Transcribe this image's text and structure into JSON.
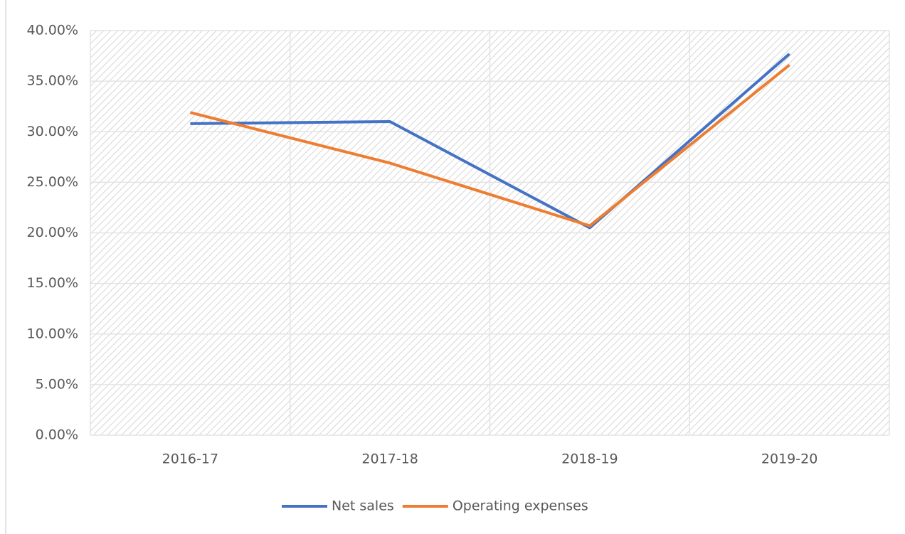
{
  "chart_data": {
    "type": "line",
    "categories": [
      "2016-17",
      "2017-18",
      "2018-19",
      "2019-20"
    ],
    "series": [
      {
        "name": "Net sales",
        "color": "#4472c4",
        "values": [
          30.8,
          31.0,
          20.5,
          37.7
        ]
      },
      {
        "name": "Operating expenses",
        "color": "#ed7d31",
        "values": [
          31.9,
          26.9,
          20.7,
          36.6
        ]
      }
    ],
    "ylim": [
      0,
      40
    ],
    "yticks": [
      {
        "value": 0,
        "label": "0.00%"
      },
      {
        "value": 5,
        "label": "5.00%"
      },
      {
        "value": 10,
        "label": "10.00%"
      },
      {
        "value": 15,
        "label": "15.00%"
      },
      {
        "value": 20,
        "label": "20.00%"
      },
      {
        "value": 25,
        "label": "25.00%"
      },
      {
        "value": 30,
        "label": "30.00%"
      },
      {
        "value": 35,
        "label": "35.00%"
      },
      {
        "value": 40,
        "label": "40.00%"
      }
    ],
    "grid": true,
    "legend": "bottom"
  }
}
